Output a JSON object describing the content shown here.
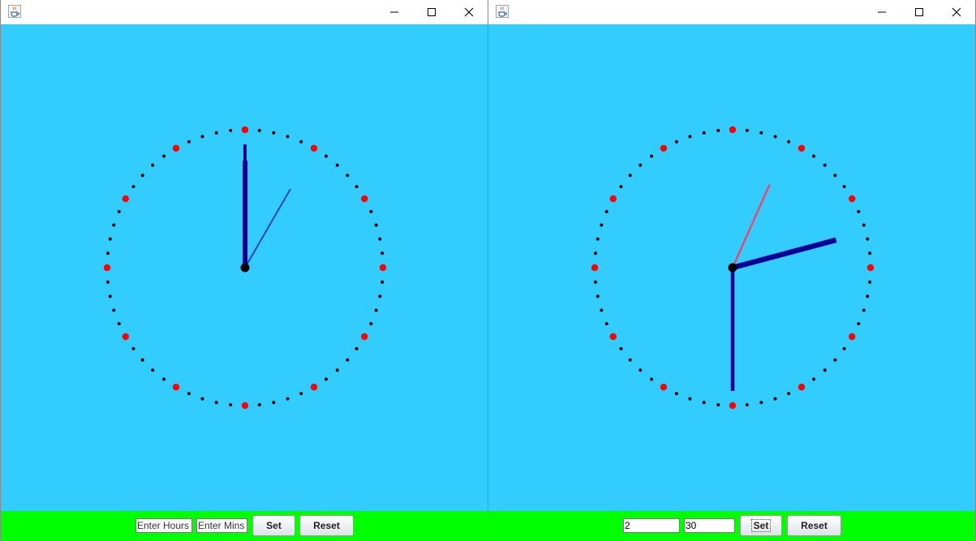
{
  "colors": {
    "canvas_bg": "#33ccff",
    "controls_bg": "#00ff00",
    "hour_hand": "#000099",
    "minute_hand": "#000099",
    "second_hand_left": "#1a46b8",
    "second_hand_right": "#f0466e",
    "five_minute_marker": "#ff0000",
    "minute_marker": "#000000",
    "center_pin": "#000000"
  },
  "icons": {
    "app": "java-coffee-cup-icon",
    "minimize": "minimize-icon",
    "maximize": "maximize-icon",
    "close": "close-icon"
  },
  "windows": [
    {
      "title": "",
      "clock": {
        "hours": 12,
        "minutes": 0,
        "seconds": 5
      },
      "controls": {
        "hours_value": "",
        "hours_placeholder": "Enter Hours",
        "mins_value": "",
        "mins_placeholder": "Enter Mins",
        "set_label": "Set",
        "reset_label": "Reset"
      }
    },
    {
      "title": "",
      "clock": {
        "hours": 2,
        "minutes": 30,
        "seconds": 4
      },
      "controls": {
        "hours_value": "2",
        "hours_placeholder": "Enter Hours",
        "mins_value": "30",
        "mins_placeholder": "Enter Mins",
        "set_label": "Set",
        "reset_label": "Reset"
      }
    }
  ]
}
